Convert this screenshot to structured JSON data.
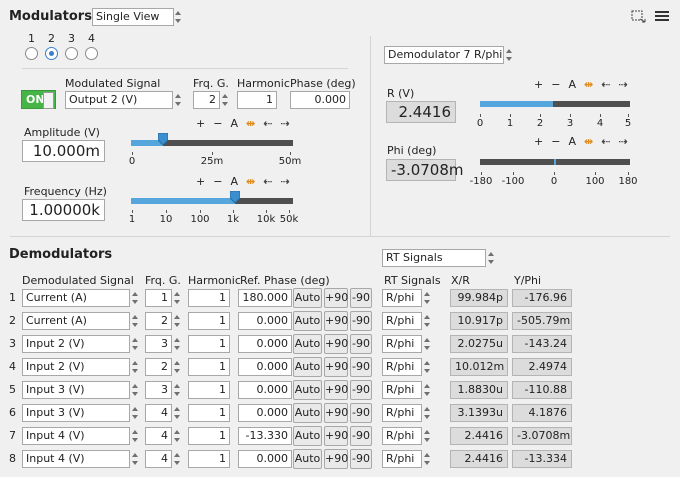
{
  "modulators": {
    "title": "Modulators",
    "view_select": "Single View",
    "tabs": [
      "1",
      "2",
      "3",
      "4"
    ],
    "selected_tab": 1,
    "toggle": "ON",
    "modulated_signal_label": "Modulated Signal",
    "modulated_signal_value": "Output 2 (V)",
    "frq_g_label": "Frq. G.",
    "frq_g_value": "2",
    "harmonic_label": "Harmonic",
    "harmonic_value": "1",
    "phase_label": "Phase (deg)",
    "phase_value": "0.000",
    "amplitude_label": "Amplitude (V)",
    "amplitude_value": "10.000m",
    "amplitude_ticks": [
      "0",
      "25m",
      "50m"
    ],
    "amplitude_fraction": 0.2,
    "frequency_label": "Frequency (Hz)",
    "frequency_value": "1.00000k",
    "frequency_ticks": [
      "1",
      "10",
      "100",
      "1k",
      "10k",
      "50k"
    ],
    "frequency_fraction": 0.64,
    "zoom_controls": [
      "+",
      "−",
      "A",
      "⇹",
      "⇠",
      "⇢"
    ]
  },
  "demod_view": {
    "select": "Demodulator 7 R/phi",
    "r_label": "R (V)",
    "r_value": "2.4416",
    "r_ticks": [
      "0",
      "1",
      "2",
      "3",
      "4",
      "5"
    ],
    "r_fraction": 0.488,
    "phi_label": "Phi (deg)",
    "phi_value": "-3.0708m",
    "phi_ticks": [
      "-180",
      "-100",
      "0",
      "100",
      "180"
    ],
    "phi_fraction": 0.5
  },
  "demodulators": {
    "title": "Demodulators",
    "rt_select": "RT Signals",
    "headers": {
      "signal": "Demodulated Signal",
      "frq": "Frq. G.",
      "harmonic": "Harmonic",
      "ref_phase": "Ref. Phase (deg)",
      "rt": "RT Signals",
      "xr": "X/R",
      "yphi": "Y/Phi"
    },
    "auto_label": "Auto",
    "plus90_label": "+90",
    "minus90_label": "-90",
    "rows": [
      {
        "idx": "1",
        "signal": "Current (A)",
        "frq": "1",
        "harm": "1",
        "phase": "180.000",
        "rt": "R/phi",
        "xr": "99.984p",
        "yphi": "-176.96"
      },
      {
        "idx": "2",
        "signal": "Current (A)",
        "frq": "2",
        "harm": "1",
        "phase": "0.000",
        "rt": "R/phi",
        "xr": "10.917p",
        "yphi": "-505.79m"
      },
      {
        "idx": "3",
        "signal": "Input 2 (V)",
        "frq": "3",
        "harm": "1",
        "phase": "0.000",
        "rt": "R/phi",
        "xr": "2.0275u",
        "yphi": "-143.24"
      },
      {
        "idx": "4",
        "signal": "Input 2 (V)",
        "frq": "2",
        "harm": "1",
        "phase": "0.000",
        "rt": "R/phi",
        "xr": "10.012m",
        "yphi": "2.4974"
      },
      {
        "idx": "5",
        "signal": "Input 3 (V)",
        "frq": "3",
        "harm": "1",
        "phase": "0.000",
        "rt": "R/phi",
        "xr": "1.8830u",
        "yphi": "-110.88"
      },
      {
        "idx": "6",
        "signal": "Input 3 (V)",
        "frq": "4",
        "harm": "1",
        "phase": "0.000",
        "rt": "R/phi",
        "xr": "3.1393u",
        "yphi": "4.1876"
      },
      {
        "idx": "7",
        "signal": "Input 4 (V)",
        "frq": "4",
        "harm": "1",
        "phase": "-13.330",
        "rt": "R/phi",
        "xr": "2.4416",
        "yphi": "-3.0708m"
      },
      {
        "idx": "8",
        "signal": "Input 4 (V)",
        "frq": "4",
        "harm": "1",
        "phase": "0.000",
        "rt": "R/phi",
        "xr": "2.4416",
        "yphi": "-13.334"
      }
    ]
  }
}
